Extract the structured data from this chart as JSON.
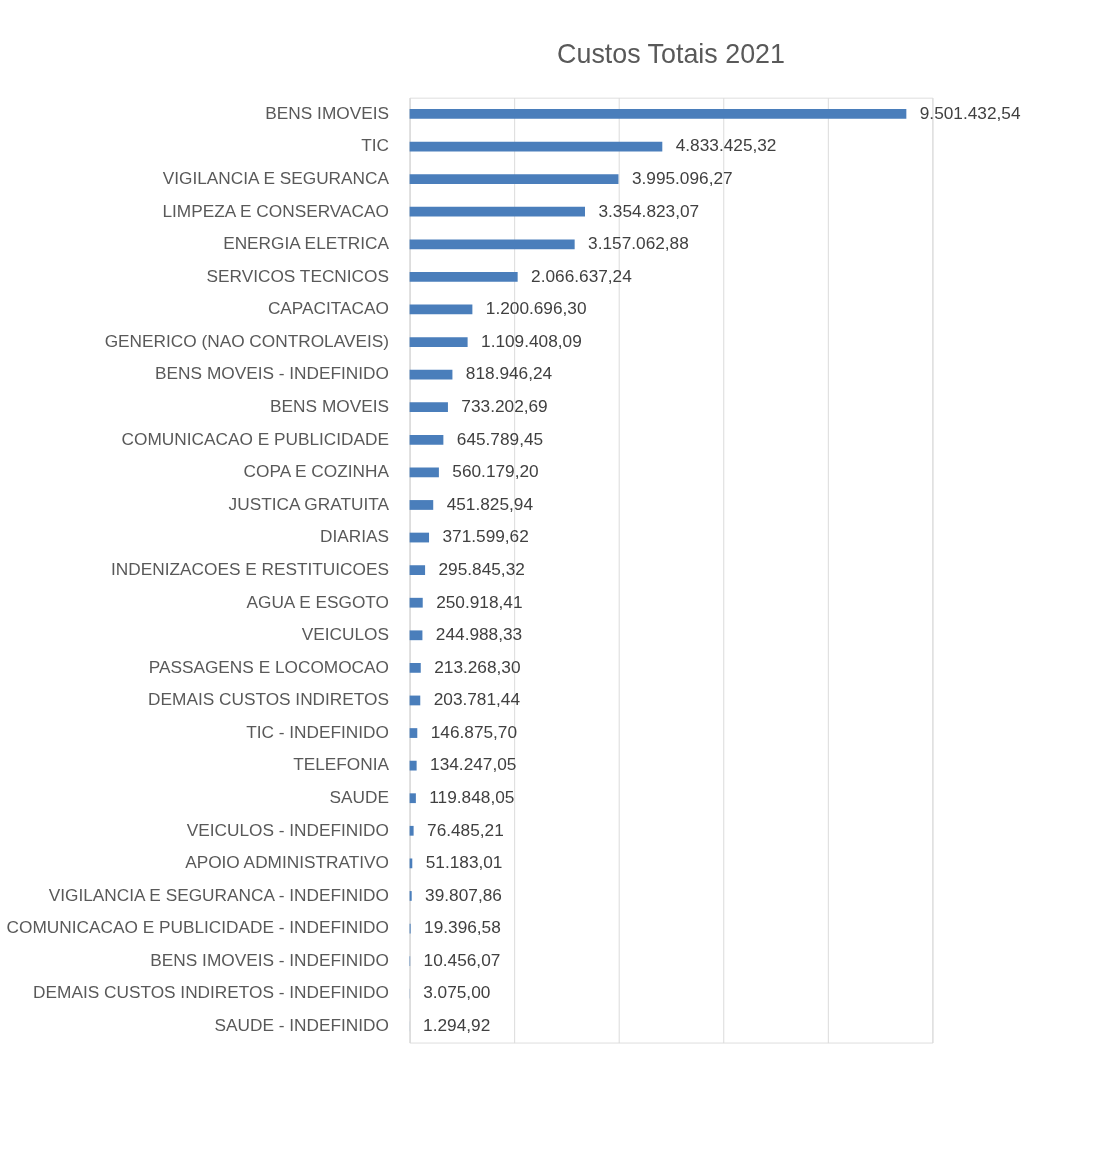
{
  "chart_data": {
    "type": "bar",
    "orientation": "horizontal",
    "title": "Custos Totais 2021",
    "categories": [
      "BENS IMOVEIS",
      "TIC",
      "VIGILANCIA E SEGURANCA",
      "LIMPEZA E CONSERVACAO",
      "ENERGIA ELETRICA",
      "SERVICOS TECNICOS",
      "CAPACITACAO",
      "GENERICO (NAO CONTROLAVEIS)",
      "BENS MOVEIS - INDEFINIDO",
      "BENS MOVEIS",
      "COMUNICACAO E PUBLICIDADE",
      "COPA E COZINHA",
      "JUSTICA GRATUITA",
      "DIARIAS",
      "INDENIZACOES E RESTITUICOES",
      "AGUA E ESGOTO",
      "VEICULOS",
      "PASSAGENS E LOCOMOCAO",
      "DEMAIS CUSTOS INDIRETOS",
      "TIC - INDEFINIDO",
      "TELEFONIA",
      "SAUDE",
      "VEICULOS - INDEFINIDO",
      "APOIO ADMINISTRATIVO",
      "VIGILANCIA E SEGURANCA - INDEFINIDO",
      "COMUNICACAO E PUBLICIDADE - INDEFINIDO",
      "BENS IMOVEIS - INDEFINIDO",
      "DEMAIS CUSTOS INDIRETOS - INDEFINIDO",
      "SAUDE - INDEFINIDO"
    ],
    "values": [
      9501432.54,
      4833425.32,
      3995096.27,
      3354823.07,
      3157062.88,
      2066637.24,
      1200696.3,
      1109408.09,
      818946.24,
      733202.69,
      645789.45,
      560179.2,
      451825.94,
      371599.62,
      295845.32,
      250918.41,
      244988.33,
      213268.3,
      203781.44,
      146875.7,
      134247.05,
      119848.05,
      76485.21,
      51183.01,
      39807.86,
      19396.58,
      10456.07,
      3075.0,
      1294.92
    ],
    "value_labels": [
      "9.501.432,54",
      "4.833.425,32",
      "3.995.096,27",
      "3.354.823,07",
      "3.157.062,88",
      "2.066.637,24",
      "1.200.696,30",
      "1.109.408,09",
      "818.946,24",
      "733.202,69",
      "645.789,45",
      "560.179,20",
      "451.825,94",
      "371.599,62",
      "295.845,32",
      "250.918,41",
      "244.988,33",
      "213.268,30",
      "203.781,44",
      "146.875,70",
      "134.247,05",
      "119.848,05",
      "76.485,21",
      "51.183,01",
      "39.807,86",
      "19.396,58",
      "10.456,07",
      "3.075,00",
      "1.294,92"
    ],
    "color": "#4a7ebb",
    "xlim": [
      0,
      10000000
    ],
    "xticks": [
      {
        "value": 0,
        "label": null
      },
      {
        "value": 2000000,
        "label": null
      },
      {
        "value": 4000000,
        "label": null
      },
      {
        "value": 6000000,
        "label": null
      },
      {
        "value": 8000000,
        "label": null
      },
      {
        "value": 10000000,
        "label": null
      }
    ],
    "tick_labels": "y",
    "grid": "x"
  }
}
